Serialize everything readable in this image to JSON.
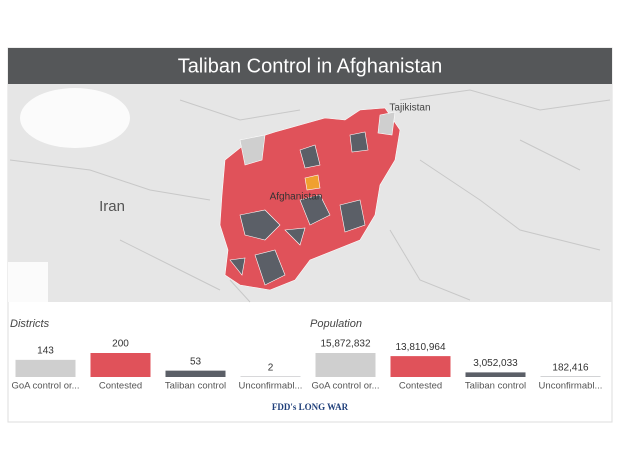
{
  "title": "Taliban Control in Afghanistan",
  "map": {
    "labels": [
      "Iran",
      "Afghanistan",
      "Tajikistan"
    ]
  },
  "chart_data": [
    {
      "type": "bar",
      "title": "Districts",
      "categories": [
        "GoA control or...",
        "Contested",
        "Taliban control",
        "Unconfirmabl..."
      ],
      "values": [
        143,
        200,
        53,
        2
      ],
      "colors": [
        "#cfcfcf",
        "#e0525a",
        "#5b5f67",
        "#5b5f67"
      ]
    },
    {
      "type": "bar",
      "title": "Population",
      "categories": [
        "GoA control or...",
        "Contested",
        "Taliban control",
        "Unconfirmabl..."
      ],
      "values": [
        15872832,
        13810964,
        3052033,
        182416
      ],
      "value_labels": [
        "15,872,832",
        "13,810,964",
        "3,052,033",
        "182,416"
      ],
      "colors": [
        "#cfcfcf",
        "#e0525a",
        "#5b5f67",
        "#5b5f67"
      ]
    }
  ],
  "logo": "FDD's LONG WAR"
}
